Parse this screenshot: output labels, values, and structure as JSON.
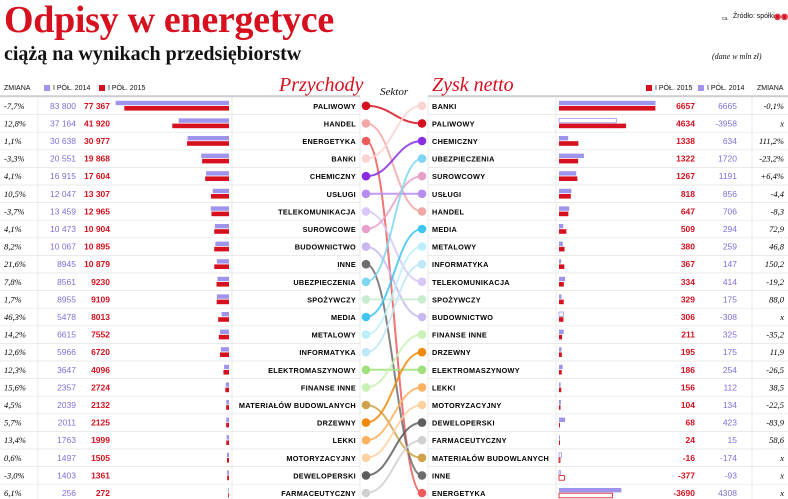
{
  "title": "Odpisy w energetyce",
  "subtitle": "ciążą na wynikach przedsiębiorstw",
  "source_small": "ca.",
  "source": "Źródło: spółki",
  "source_logo": "◉◉",
  "unit": "(dane w mln zł)",
  "revenue_heading": "Przychody",
  "profit_heading": "Zysk netto",
  "sector_label": "Sektor",
  "change_label": "ZMIANA",
  "h1_2014": "I PÓŁ. 2014",
  "h1_2015": "I PÓŁ. 2015",
  "colors": {
    "red": "#d6101e",
    "violet": "#9f94ec",
    "grid": "#e3e3e3"
  },
  "chart_data": [
    {
      "type": "bar",
      "title": "Przychody",
      "categories": [
        "Paliwowy",
        "Handel",
        "Energetyka",
        "Banki",
        "Chemiczny",
        "Usługi",
        "Telekomunikacja",
        "Surowcowe",
        "Budownictwo",
        "inne",
        "Ubezpieczenia",
        "Spożywczy",
        "Media",
        "Metalowy",
        "Informatyka",
        "Elektromaszynowy",
        "Finanse inne",
        "Materiałów budowlanych",
        "Drzewny",
        "Lekki",
        "Motoryzacyjny",
        "Deweloperski",
        "Farmaceutyczny"
      ],
      "change": [
        "-7,7%",
        "12,8%",
        "1,1%",
        "-3,3%",
        "4,1%",
        "10,5%",
        "-3,7%",
        "4,1%",
        "8,2%",
        "21,6%",
        "7,8%",
        "1,7%",
        "46,3%",
        "14,2%",
        "12,6%",
        "12,3%",
        "15,6%",
        "4,5%",
        "5,7%",
        "13,4%",
        "0,6%",
        "-3,0%",
        "6,1%"
      ],
      "series": [
        {
          "name": "I PÓŁ. 2014",
          "values": [
            83800,
            37164,
            30638,
            20551,
            16915,
            12047,
            13459,
            10473,
            10067,
            8945,
            8561,
            8955,
            5478,
            6615,
            5966,
            3647,
            2357,
            2039,
            2011,
            1763,
            1497,
            1403,
            256
          ],
          "labels": [
            "83 800",
            "37 164",
            "30 638",
            "20 551",
            "16 915",
            "12 047",
            "13 459",
            "10 473",
            "10 067",
            "8945",
            "8561",
            "8955",
            "5478",
            "6615",
            "5966",
            "3647",
            "2357",
            "2039",
            "2011",
            "1763",
            "1497",
            "1403",
            "256"
          ]
        },
        {
          "name": "I PÓŁ. 2015",
          "values": [
            77367,
            41920,
            30977,
            19868,
            17604,
            13307,
            12965,
            10904,
            10895,
            10879,
            9230,
            9109,
            8013,
            7552,
            6720,
            4096,
            2724,
            2132,
            2125,
            1999,
            1505,
            1361,
            272
          ],
          "labels": [
            "77 367",
            "41 920",
            "30 977",
            "19 868",
            "17 604",
            "13 307",
            "12 965",
            "10 904",
            "10 895",
            "10 879",
            "9230",
            "9109",
            "8013",
            "7552",
            "6720",
            "4096",
            "2724",
            "2132",
            "2125",
            "1999",
            "1505",
            "1361",
            "272"
          ]
        }
      ]
    },
    {
      "type": "bar",
      "title": "Zysk netto",
      "categories": [
        "Banki",
        "Paliwowy",
        "Chemiczny",
        "Ubezpieczenia",
        "Surowcowy",
        "Usługi",
        "Handel",
        "Media",
        "Metalowy",
        "Informatyka",
        "Telekomunikacja",
        "Spożywczy",
        "Budownictwo",
        "Finanse inne",
        "Drzewny",
        "Elektromaszynowy",
        "Lekki",
        "Motoryzacyjny",
        "Deweloperski",
        "Farmaceutyczny",
        "Materiałów budowlanych",
        "inne",
        "Energetyka"
      ],
      "change": [
        "-0,1%",
        "x",
        "111,2%",
        "-23,2%",
        "+6,4%",
        "-4,4",
        "-8,3",
        "72,9",
        "46,8",
        "150,2",
        "-19,2",
        "88,0",
        "x",
        "-35,2",
        "11,9",
        "-26,5",
        "38,5",
        "-22,5",
        "-83,9",
        "58,6",
        "x",
        "x",
        "x"
      ],
      "series": [
        {
          "name": "I PÓŁ. 2015",
          "values": [
            6657,
            4634,
            1338,
            1322,
            1267,
            818,
            647,
            509,
            380,
            367,
            334,
            329,
            306,
            211,
            195,
            186,
            156,
            104,
            68,
            24,
            -16,
            -377,
            -3690
          ],
          "labels": [
            "6657",
            "4634",
            "1338",
            "1322",
            "1267",
            "818",
            "647",
            "509",
            "380",
            "367",
            "334",
            "329",
            "306",
            "211",
            "195",
            "186",
            "156",
            "104",
            "68",
            "24",
            "-16",
            "-377",
            "-3690"
          ]
        },
        {
          "name": "I PÓŁ. 2014",
          "values": [
            6665,
            -3958,
            634,
            1720,
            1191,
            856,
            706,
            294,
            259,
            147,
            414,
            175,
            -308,
            325,
            175,
            254,
            112,
            134,
            423,
            15,
            -174,
            -93,
            4308
          ],
          "labels": [
            "6665",
            "-3958",
            "634",
            "1720",
            "1191",
            "856",
            "706",
            "294",
            "259",
            "147",
            "414",
            "175",
            "-308",
            "325",
            "175",
            "254",
            "112",
            "134",
            "423",
            "15",
            "-174",
            "-93",
            "4308"
          ]
        }
      ]
    }
  ]
}
